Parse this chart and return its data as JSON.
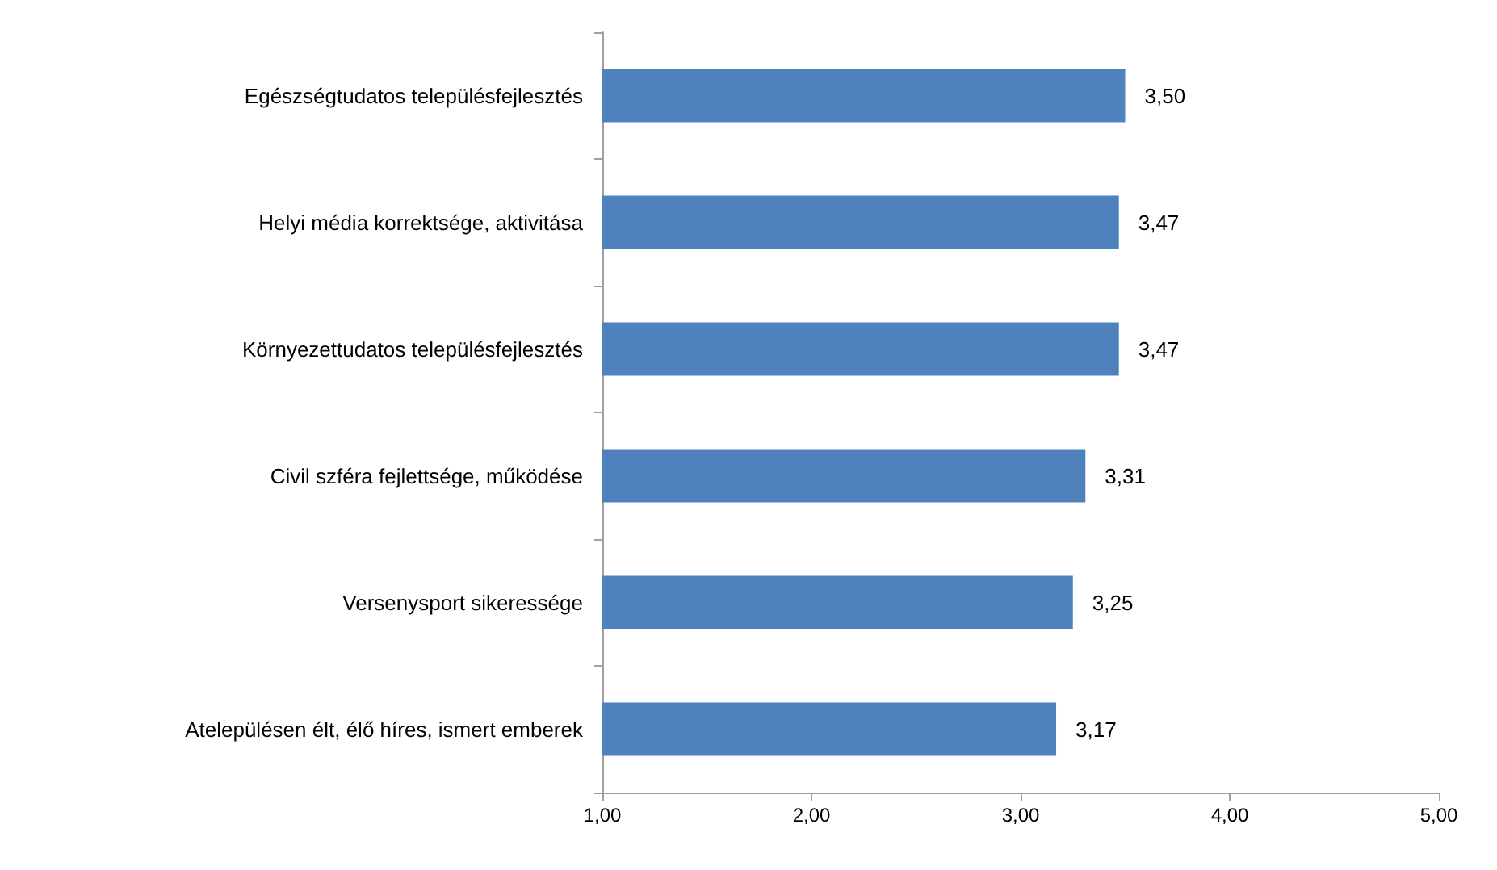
{
  "chart_data": {
    "type": "bar",
    "orientation": "horizontal",
    "categories": [
      "Egészségtudatos településfejlesztés",
      "Helyi média korrektsége, aktivitása",
      "Környezettudatos településfejlesztés",
      "Civil szféra fejlettsége, működése",
      "Versenysport sikeressége",
      "Atelepülésen élt, élő híres, ismert emberek"
    ],
    "values": [
      3.5,
      3.47,
      3.47,
      3.31,
      3.25,
      3.17
    ],
    "value_labels": [
      "3,50",
      "3,47",
      "3,47",
      "3,31",
      "3,25",
      "3,17"
    ],
    "color": "#4f81bd",
    "xlim": [
      1,
      5
    ],
    "xticks": [
      {
        "value": 1,
        "label": "1,00"
      },
      {
        "value": 2,
        "label": "2,00"
      },
      {
        "value": 3,
        "label": "3,00"
      },
      {
        "value": 4,
        "label": "4,00"
      },
      {
        "value": 5,
        "label": "5,00"
      }
    ],
    "grid": false
  }
}
